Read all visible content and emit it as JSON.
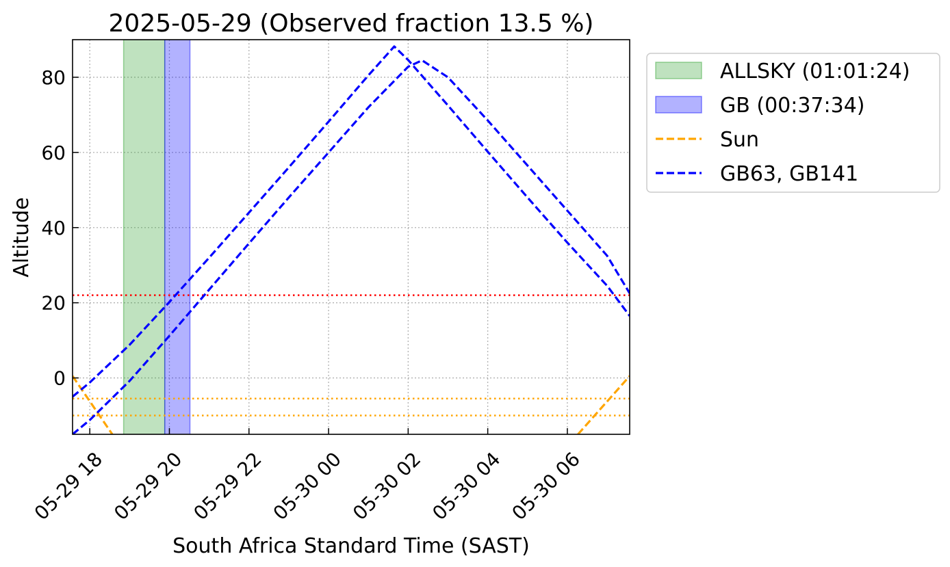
{
  "chart_data": {
    "type": "line",
    "title": "2025-05-29 (Observed fraction 13.5 %)",
    "xlabel": "South Africa Standard Time (SAST)",
    "ylabel": "Altitude",
    "xlim": [
      "2025-05-29T17:34",
      "2025-05-30T07:34"
    ],
    "ylim": [
      -15,
      90
    ],
    "x_ticks": [
      {
        "value": "2025-05-29T18:00",
        "label": "05-29 18"
      },
      {
        "value": "2025-05-29T20:00",
        "label": "05-29 20"
      },
      {
        "value": "2025-05-29T22:00",
        "label": "05-29 22"
      },
      {
        "value": "2025-05-30T00:00",
        "label": "05-30 00"
      },
      {
        "value": "2025-05-30T02:00",
        "label": "05-30 02"
      },
      {
        "value": "2025-05-30T04:00",
        "label": "05-30 04"
      },
      {
        "value": "2025-05-30T06:00",
        "label": "05-30 06"
      }
    ],
    "y_ticks": [
      0,
      20,
      40,
      60,
      80
    ],
    "grid": true,
    "legend_position": "outside-right",
    "bands": [
      {
        "name": "ALLSKY (01:01:24)",
        "start": "2025-05-29T18:51",
        "end": "2025-05-29T19:53",
        "color": "#2ca02c"
      },
      {
        "name": "GB (00:37:34)",
        "start": "2025-05-29T19:53",
        "end": "2025-05-29T20:31",
        "color": "#0000ff"
      }
    ],
    "hlines": [
      {
        "y": 22,
        "color": "#ff0000",
        "style": "dotted"
      },
      {
        "y": -5.5,
        "color": "#ffa500",
        "style": "dotted"
      },
      {
        "y": -10,
        "color": "#ffa500",
        "style": "dotted"
      }
    ],
    "series": [
      {
        "name": "Sun",
        "color": "#ffa500",
        "style": "dashed",
        "segments": [
          [
            [
              "2025-05-29T17:34",
              0.5
            ],
            [
              "2025-05-29T18:34",
              -15
            ]
          ],
          [
            [
              "2025-05-30T06:16",
              -15
            ],
            [
              "2025-05-30T07:34",
              0.5
            ]
          ]
        ]
      },
      {
        "name": "GB63, GB141",
        "color": "#0000ff",
        "style": "dashed",
        "segments": [
          [
            [
              "2025-05-29T17:34",
              -5
            ],
            [
              "2025-05-29T18:00",
              -1.2
            ],
            [
              "2025-05-29T19:00",
              8.8
            ],
            [
              "2025-05-29T20:00",
              20.2
            ],
            [
              "2025-05-29T21:00",
              32
            ],
            [
              "2025-05-29T22:00",
              44
            ],
            [
              "2025-05-29T23:00",
              56
            ],
            [
              "2025-05-30T00:00",
              68.2
            ],
            [
              "2025-05-30T01:00",
              80.5
            ],
            [
              "2025-05-30T01:39",
              88.2
            ],
            [
              "2025-05-30T02:00",
              84.6
            ],
            [
              "2025-05-30T03:00",
              72.5
            ],
            [
              "2025-05-30T04:00",
              60.2
            ],
            [
              "2025-05-30T05:00",
              48
            ],
            [
              "2025-05-30T06:00",
              36
            ],
            [
              "2025-05-30T07:00",
              24.5
            ],
            [
              "2025-05-30T07:34",
              16.5
            ]
          ],
          [
            [
              "2025-05-29T17:34",
              -15
            ],
            [
              "2025-05-29T18:00",
              -11.2
            ],
            [
              "2025-05-29T19:00",
              -0.8
            ],
            [
              "2025-05-29T20:00",
              11.2
            ],
            [
              "2025-05-29T21:00",
              23.5
            ],
            [
              "2025-05-29T22:00",
              35.8
            ],
            [
              "2025-05-29T23:00",
              48
            ],
            [
              "2025-05-30T00:00",
              60
            ],
            [
              "2025-05-30T01:00",
              72
            ],
            [
              "2025-05-30T02:00",
              82.8
            ],
            [
              "2025-05-30T02:21",
              84.5
            ],
            [
              "2025-05-30T03:00",
              80
            ],
            [
              "2025-05-30T04:00",
              68.5
            ],
            [
              "2025-05-30T05:00",
              56.5
            ],
            [
              "2025-05-30T06:00",
              44.5
            ],
            [
              "2025-05-30T07:00",
              32.5
            ],
            [
              "2025-05-30T07:34",
              22.5
            ]
          ]
        ]
      }
    ],
    "legend": [
      {
        "label": "ALLSKY (01:01:24)",
        "kind": "patch",
        "color": "#2ca02c"
      },
      {
        "label": "GB (00:37:34)",
        "kind": "patch",
        "color": "#0000ff"
      },
      {
        "label": "Sun",
        "kind": "line",
        "color": "#ffa500"
      },
      {
        "label": "GB63, GB141",
        "kind": "line",
        "color": "#0000ff"
      }
    ]
  }
}
